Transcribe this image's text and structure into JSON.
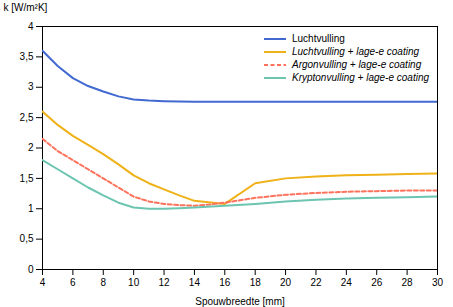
{
  "chart_data": {
    "type": "line",
    "xlabel": "Spouwbreedte [mm]",
    "ylabel": "k [W/m²K]",
    "xlim": [
      4,
      30
    ],
    "ylim": [
      0,
      4.0
    ],
    "xticks": [
      4,
      6,
      8,
      10,
      12,
      14,
      16,
      18,
      20,
      22,
      24,
      26,
      28,
      30
    ],
    "yticks": [
      0,
      {
        "value": 0.5,
        "label": "0,5"
      },
      1,
      {
        "value": 1.5,
        "label": "1,5"
      },
      2,
      {
        "value": 2.5,
        "label": "2,5"
      },
      3,
      {
        "value": 3.5,
        "label": "3,5"
      },
      4
    ],
    "grid": false,
    "legend": "upper right",
    "series": [
      {
        "name": "Luchtvulling",
        "line_style": "solid",
        "x": [
          4,
          5,
          6,
          7,
          8,
          9,
          10,
          11,
          12,
          14,
          16,
          18,
          20,
          22,
          24,
          26,
          28,
          30
        ],
        "values": [
          3.6,
          3.35,
          3.15,
          3.02,
          2.93,
          2.85,
          2.8,
          2.78,
          2.77,
          2.76,
          2.76,
          2.76,
          2.76,
          2.76,
          2.76,
          2.76,
          2.76,
          2.76
        ]
      },
      {
        "name": "Luchtvulling + lage-e coating",
        "line_style": "solid",
        "x": [
          4,
          5,
          6,
          7,
          8,
          9,
          10,
          11,
          12,
          13,
          14,
          16,
          18,
          20,
          22,
          24,
          26,
          28,
          30
        ],
        "values": [
          2.6,
          2.38,
          2.2,
          2.05,
          1.9,
          1.73,
          1.55,
          1.42,
          1.32,
          1.22,
          1.13,
          1.08,
          1.42,
          1.5,
          1.53,
          1.55,
          1.56,
          1.57,
          1.58
        ]
      },
      {
        "name": "Argonvulling + lage-e coating",
        "line_style": "dashed",
        "x": [
          4,
          5,
          6,
          7,
          8,
          9,
          10,
          11,
          12,
          13,
          14,
          15,
          16,
          18,
          20,
          22,
          24,
          26,
          28,
          30
        ],
        "values": [
          2.15,
          1.95,
          1.8,
          1.65,
          1.5,
          1.35,
          1.2,
          1.12,
          1.08,
          1.06,
          1.05,
          1.07,
          1.1,
          1.18,
          1.23,
          1.26,
          1.28,
          1.29,
          1.3,
          1.3
        ]
      },
      {
        "name": "Kryptonvulling + lage-e coating",
        "line_style": "solid",
        "x": [
          4,
          5,
          6,
          7,
          8,
          9,
          10,
          11,
          12,
          13,
          14,
          16,
          18,
          20,
          22,
          24,
          26,
          28,
          30
        ],
        "values": [
          1.8,
          1.65,
          1.5,
          1.35,
          1.22,
          1.1,
          1.02,
          1.0,
          1.0,
          1.01,
          1.02,
          1.05,
          1.08,
          1.12,
          1.15,
          1.17,
          1.18,
          1.19,
          1.2
        ]
      }
    ]
  }
}
